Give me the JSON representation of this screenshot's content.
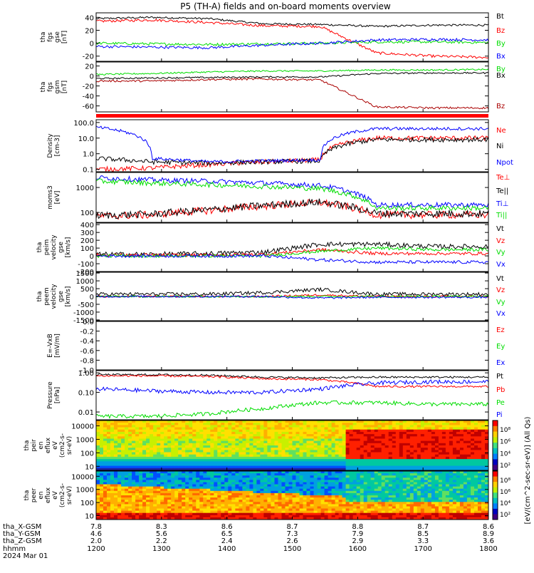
{
  "chart_data": {
    "type": "line",
    "title": "P5 (TH-A) fields and on-board moments overview",
    "panels": [
      {
        "id": "fgs-gse",
        "ylabel": [
          "tha",
          "fgs",
          "gse",
          "[nT]"
        ],
        "ytick_labels": [
          "40",
          "20",
          "0",
          "-20"
        ],
        "yticks": [
          40,
          20,
          0,
          -20
        ],
        "ylim": [
          -28,
          47
        ],
        "log": false,
        "series": [
          {
            "name": "Bt",
            "color": "#000000",
            "base": [
              38,
              40,
              38,
              30,
              29,
              26,
              28,
              28
            ],
            "noise": 1.5
          },
          {
            "name": "Bz",
            "color": "#ff0000",
            "base": [
              34,
              36,
              32,
              27,
              26,
              -15,
              -20,
              -22
            ],
            "noise": 2
          },
          {
            "name": "By",
            "color": "#00dd00",
            "base": [
              0,
              -1,
              -2,
              -1,
              0,
              2,
              2,
              1
            ],
            "noise": 2
          },
          {
            "name": "Bx",
            "color": "#0000ff",
            "base": [
              -5,
              -6,
              -7,
              -3,
              0,
              5,
              6,
              5
            ],
            "noise": 2
          }
        ]
      },
      {
        "id": "fgs-gsm",
        "ylabel": [
          "tha",
          "fgs",
          "gsm",
          "[nT]"
        ],
        "ytick_labels": [
          "20",
          "0",
          "-20",
          "-40",
          "-60"
        ],
        "yticks": [
          20,
          0,
          -20,
          -40,
          -60
        ],
        "ylim": [
          -72,
          28
        ],
        "log": false,
        "series": [
          {
            "name": "By",
            "color": "#00dd00",
            "base": [
              3,
              5,
              8,
              10,
              10,
              12,
              12,
              13
            ],
            "noise": 1.5
          },
          {
            "name": "Bx",
            "color": "#000000",
            "base": [
              -5,
              -4,
              -3,
              -2,
              -2,
              5,
              6,
              6
            ],
            "noise": 1.5
          },
          {
            "name": "Bz",
            "color": "#aa0000",
            "base": [
              -10,
              -10,
              -7,
              -6,
              -8,
              -62,
              -64,
              -64
            ],
            "noise": 2
          }
        ]
      },
      {
        "id": "density",
        "ylabel": [
          "Density",
          "[cm-3]"
        ],
        "ytick_labels": [
          "100.0",
          "10.0",
          "1.0",
          "0.1"
        ],
        "yticks": [
          100,
          10,
          1,
          0.1
        ],
        "ylim": [
          0.07,
          150
        ],
        "log": true,
        "series": [
          {
            "name": "Ne",
            "color": "#ff0000",
            "base": [
              0.1,
              0.12,
              0.2,
              0.3,
              0.4,
              10,
              10,
              10
            ],
            "noise": 0.15
          },
          {
            "name": "Ni",
            "color": "#000000",
            "base": [
              0.5,
              0.3,
              0.25,
              0.3,
              0.35,
              8,
              8,
              8
            ],
            "noise": 0.15
          },
          {
            "name": "Npot",
            "color": "#0000ff",
            "base": [
              50,
              0.5,
              0.3,
              0.35,
              0.4,
              40,
              40,
              40
            ],
            "noise": 0.1
          }
        ]
      },
      {
        "id": "temperature",
        "ylabel": [
          "moms3",
          "[eV]"
        ],
        "ytick_labels": [
          "1000",
          "100"
        ],
        "yticks": [
          1000,
          100
        ],
        "ylim": [
          40,
          4000
        ],
        "log": true,
        "series": [
          {
            "name": "Te⊥",
            "color": "#ff0000",
            "base": [
              70,
              80,
              120,
              180,
              250,
              80,
              80,
              80
            ],
            "noise": 0.15
          },
          {
            "name": "Te||",
            "color": "#000000",
            "base": [
              75,
              85,
              125,
              190,
              260,
              90,
              90,
              90
            ],
            "noise": 0.15
          },
          {
            "name": "Ti⊥",
            "color": "#0000ff",
            "base": [
              2500,
              2000,
              1800,
              1500,
              1200,
              200,
              200,
              200
            ],
            "noise": 0.1
          },
          {
            "name": "Ti||",
            "color": "#00dd00",
            "base": [
              1800,
              1500,
              1300,
              1100,
              900,
              150,
              150,
              150
            ],
            "noise": 0.1
          }
        ]
      },
      {
        "id": "peim-velocity",
        "ylabel": [
          "tha",
          "peim",
          "velocity",
          "gse",
          "[km/s]"
        ],
        "ytick_labels": [
          "400",
          "300",
          "200",
          "100",
          "0",
          "-100",
          "-200"
        ],
        "yticks": [
          400,
          300,
          200,
          100,
          0,
          -100,
          -200
        ],
        "ylim": [
          -200,
          420
        ],
        "log": false,
        "series": [
          {
            "name": "Vt",
            "color": "#000000",
            "base": [
              20,
              20,
              30,
              50,
              150,
              150,
              120,
              120
            ],
            "noise": 30
          },
          {
            "name": "Vz",
            "color": "#ff0000",
            "base": [
              10,
              10,
              10,
              20,
              80,
              30,
              30,
              30
            ],
            "noise": 20
          },
          {
            "name": "Vy",
            "color": "#00dd00",
            "base": [
              0,
              0,
              0,
              0,
              60,
              100,
              80,
              80
            ],
            "noise": 20
          },
          {
            "name": "Vx",
            "color": "#0000ff",
            "base": [
              0,
              0,
              0,
              0,
              -50,
              -80,
              -80,
              -80
            ],
            "noise": 20
          }
        ]
      },
      {
        "id": "peem-velocity",
        "ylabel": [
          "tha",
          "peem",
          "velocity",
          "gse",
          "[km/s]"
        ],
        "ytick_labels": [
          "1500",
          "1000",
          "500",
          "0",
          "-500",
          "-1000",
          "-1500"
        ],
        "yticks": [
          1500,
          1000,
          500,
          0,
          -500,
          -1000,
          -1500
        ],
        "ylim": [
          -1550,
          1550
        ],
        "log": false,
        "series": [
          {
            "name": "Vt",
            "color": "#000000",
            "base": [
              150,
              150,
              150,
              250,
              450,
              150,
              150,
              150
            ],
            "noise": 110
          },
          {
            "name": "Vz",
            "color": "#ff0000",
            "base": [
              0,
              0,
              0,
              0,
              100,
              0,
              0,
              0
            ],
            "noise": 60
          },
          {
            "name": "Vy",
            "color": "#00dd00",
            "base": [
              0,
              0,
              0,
              0,
              0,
              0,
              0,
              0
            ],
            "noise": 60
          },
          {
            "name": "Vx",
            "color": "#0000ff",
            "base": [
              0,
              0,
              0,
              0,
              -100,
              -50,
              -50,
              -50
            ],
            "noise": 60
          }
        ]
      },
      {
        "id": "efield",
        "ylabel": [
          "E=-VxB",
          "[mV/m]"
        ],
        "ytick_labels": [
          "0.0",
          "-0.2",
          "-0.4",
          "-0.6",
          "-0.8",
          "-1.0"
        ],
        "yticks": [
          0,
          -0.2,
          -0.4,
          -0.6,
          -0.8,
          -1.0
        ],
        "ylim": [
          -1.0,
          0.0
        ],
        "log": false,
        "series": [
          {
            "name": "Ez",
            "color": "#ff0000",
            "base": [],
            "noise": 0
          },
          {
            "name": "Ey",
            "color": "#00dd00",
            "base": [],
            "noise": 0
          },
          {
            "name": "Ex",
            "color": "#0000ff",
            "base": [],
            "noise": 0
          }
        ]
      },
      {
        "id": "pressure",
        "ylabel": [
          "Pressure",
          "[nPa]"
        ],
        "ytick_labels": [
          "1.00",
          "0.10",
          "0.01"
        ],
        "yticks": [
          1.0,
          0.1,
          0.01
        ],
        "ylim": [
          0.004,
          1.3
        ],
        "log": true,
        "series": [
          {
            "name": "Pt",
            "color": "#000000",
            "base": [
              0.8,
              0.8,
              0.75,
              0.6,
              0.55,
              0.6,
              0.6,
              0.6
            ],
            "noise": 0.05
          },
          {
            "name": "Pb",
            "color": "#ff0000",
            "base": [
              0.7,
              0.7,
              0.65,
              0.5,
              0.45,
              0.2,
              0.2,
              0.2
            ],
            "noise": 0.05
          },
          {
            "name": "Pe",
            "color": "#00dd00",
            "base": [
              0.006,
              0.006,
              0.008,
              0.015,
              0.03,
              0.03,
              0.025,
              0.025
            ],
            "noise": 0.1
          },
          {
            "name": "Pi",
            "color": "#0000ff",
            "base": [
              0.15,
              0.12,
              0.1,
              0.1,
              0.15,
              0.3,
              0.35,
              0.35
            ],
            "noise": 0.1
          }
        ]
      },
      {
        "id": "peir-spec",
        "ylabel": [
          "tha",
          "peir",
          "en",
          "eflux",
          "eV",
          "(cm2-s-",
          "sr-eV)"
        ],
        "type": "heatmap",
        "ytick_labels": [
          "10000",
          "1000",
          "100",
          "10"
        ],
        "yticks": [
          10000,
          1000,
          100,
          10
        ],
        "ylim": [
          5,
          25000
        ],
        "log": true
      },
      {
        "id": "peer-spec",
        "ylabel": [
          "tha",
          "peer",
          "en",
          "eflux",
          "eV",
          "(cm2-s-",
          "sr-eV)"
        ],
        "type": "heatmap",
        "ytick_labels": [
          "10000",
          "1000",
          "100",
          "10"
        ],
        "yticks": [
          10000,
          1000,
          100,
          10
        ],
        "ylim": [
          5,
          25000
        ],
        "log": true
      }
    ],
    "colorbar": {
      "label": "[eV/(cm^2-sec-sr-eV)] (All Qs)",
      "ticks": [
        "10⁸",
        "10⁶",
        "10⁴",
        "10²"
      ]
    },
    "x": {
      "label_rows": [
        "tha_X-GSM",
        "tha_Y-GSM",
        "tha_Z-GSM",
        "hhmm",
        "2024 Mar 01"
      ],
      "tick_values": [
        1200,
        1300,
        1400,
        1500,
        1600,
        1700,
        1800
      ],
      "xlim": [
        1200,
        1800
      ],
      "X_GSM": [
        "7.8",
        "8.3",
        "8.6",
        "8.7",
        "8.8",
        "8.7",
        "8.6"
      ],
      "Y_GSM": [
        "4.6",
        "5.6",
        "6.5",
        "7.3",
        "7.9",
        "8.5",
        "8.9"
      ],
      "Z_GSM": [
        "2.0",
        "2.2",
        "2.4",
        "2.6",
        "2.9",
        "3.3",
        "3.6"
      ],
      "hhmm": [
        "1200",
        "1300",
        "1400",
        "1500",
        "1600",
        "1700",
        "1800"
      ]
    }
  }
}
